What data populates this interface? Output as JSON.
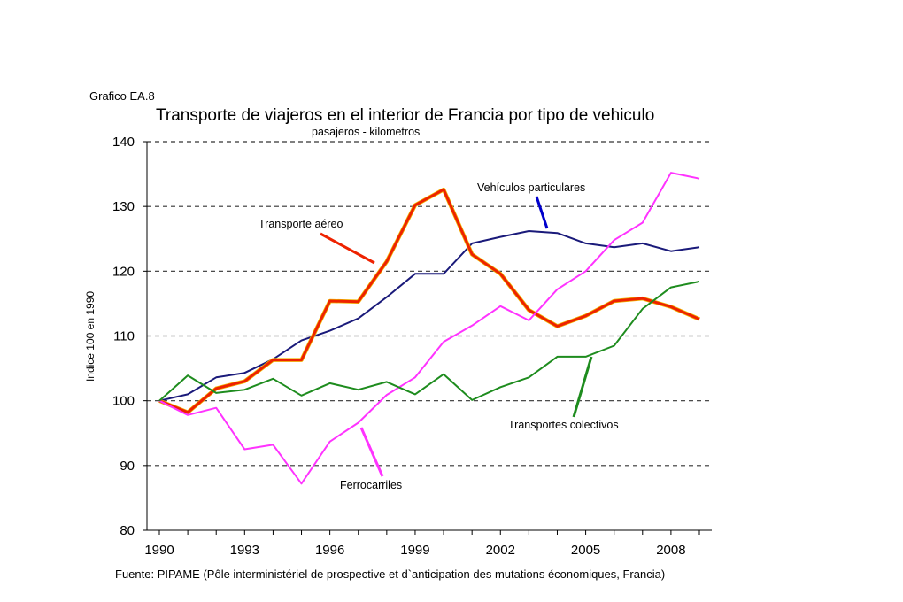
{
  "figure_label": "Grafico EA.8",
  "source": "Fuente: PIPAME (Pôle interministériel de prospective et d`anticipation des mutations économiques, Francia)",
  "chart_data": {
    "type": "line",
    "title": "Transporte de viajeros en el interior de Francia por tipo de vehiculo",
    "subtitle": "pasajeros - kilometros",
    "ylabel": "Indice 100 en 1990",
    "xlabel": "",
    "ylim": [
      80,
      140
    ],
    "xlim": [
      1990,
      2009
    ],
    "yticks": [
      80,
      90,
      100,
      110,
      120,
      130,
      140
    ],
    "xticks": [
      1990,
      1993,
      1996,
      1999,
      2002,
      2005,
      2008
    ],
    "grid": "horizontal dashed",
    "x": [
      1990,
      1991,
      1992,
      1993,
      1994,
      1995,
      1996,
      1997,
      1998,
      1999,
      2000,
      2001,
      2002,
      2003,
      2004,
      2005,
      2006,
      2007,
      2008,
      2009
    ],
    "series": [
      {
        "name": "Vehículos particulares",
        "color": "#1a1a7a",
        "values": [
          100,
          101,
          103.6,
          104.3,
          106.4,
          109.3,
          110.8,
          112.7,
          116,
          119.6,
          119.6,
          124.3,
          125.3,
          126.2,
          125.9,
          124.3,
          123.7,
          124.3,
          123.1,
          123.7
        ]
      },
      {
        "name": "Transporte aéreo",
        "color": "#ee2200",
        "values": [
          100,
          98.2,
          101.9,
          103,
          106.3,
          106.3,
          115.4,
          115.3,
          121.5,
          130.2,
          132.6,
          122.6,
          119.6,
          114,
          111.5,
          113.1,
          115.4,
          115.8,
          114.5,
          112.6
        ]
      },
      {
        "name": "Ferrocarriles",
        "color": "#ff33ff",
        "values": [
          100,
          97.8,
          98.9,
          92.5,
          93.2,
          87.2,
          93.7,
          96.6,
          100.9,
          103.6,
          109.1,
          111.6,
          114.6,
          112.4,
          117.2,
          120,
          124.8,
          127.5,
          135.2,
          134.3
        ]
      },
      {
        "name": "Transportes colectivos",
        "color": "#1e8c1e",
        "values": [
          100,
          103.9,
          101.2,
          101.7,
          103.4,
          100.8,
          102.7,
          101.7,
          102.9,
          101,
          104.1,
          100.1,
          102.1,
          103.6,
          106.8,
          106.8,
          108.5,
          114.2,
          117.5,
          118.4
        ]
      }
    ]
  }
}
